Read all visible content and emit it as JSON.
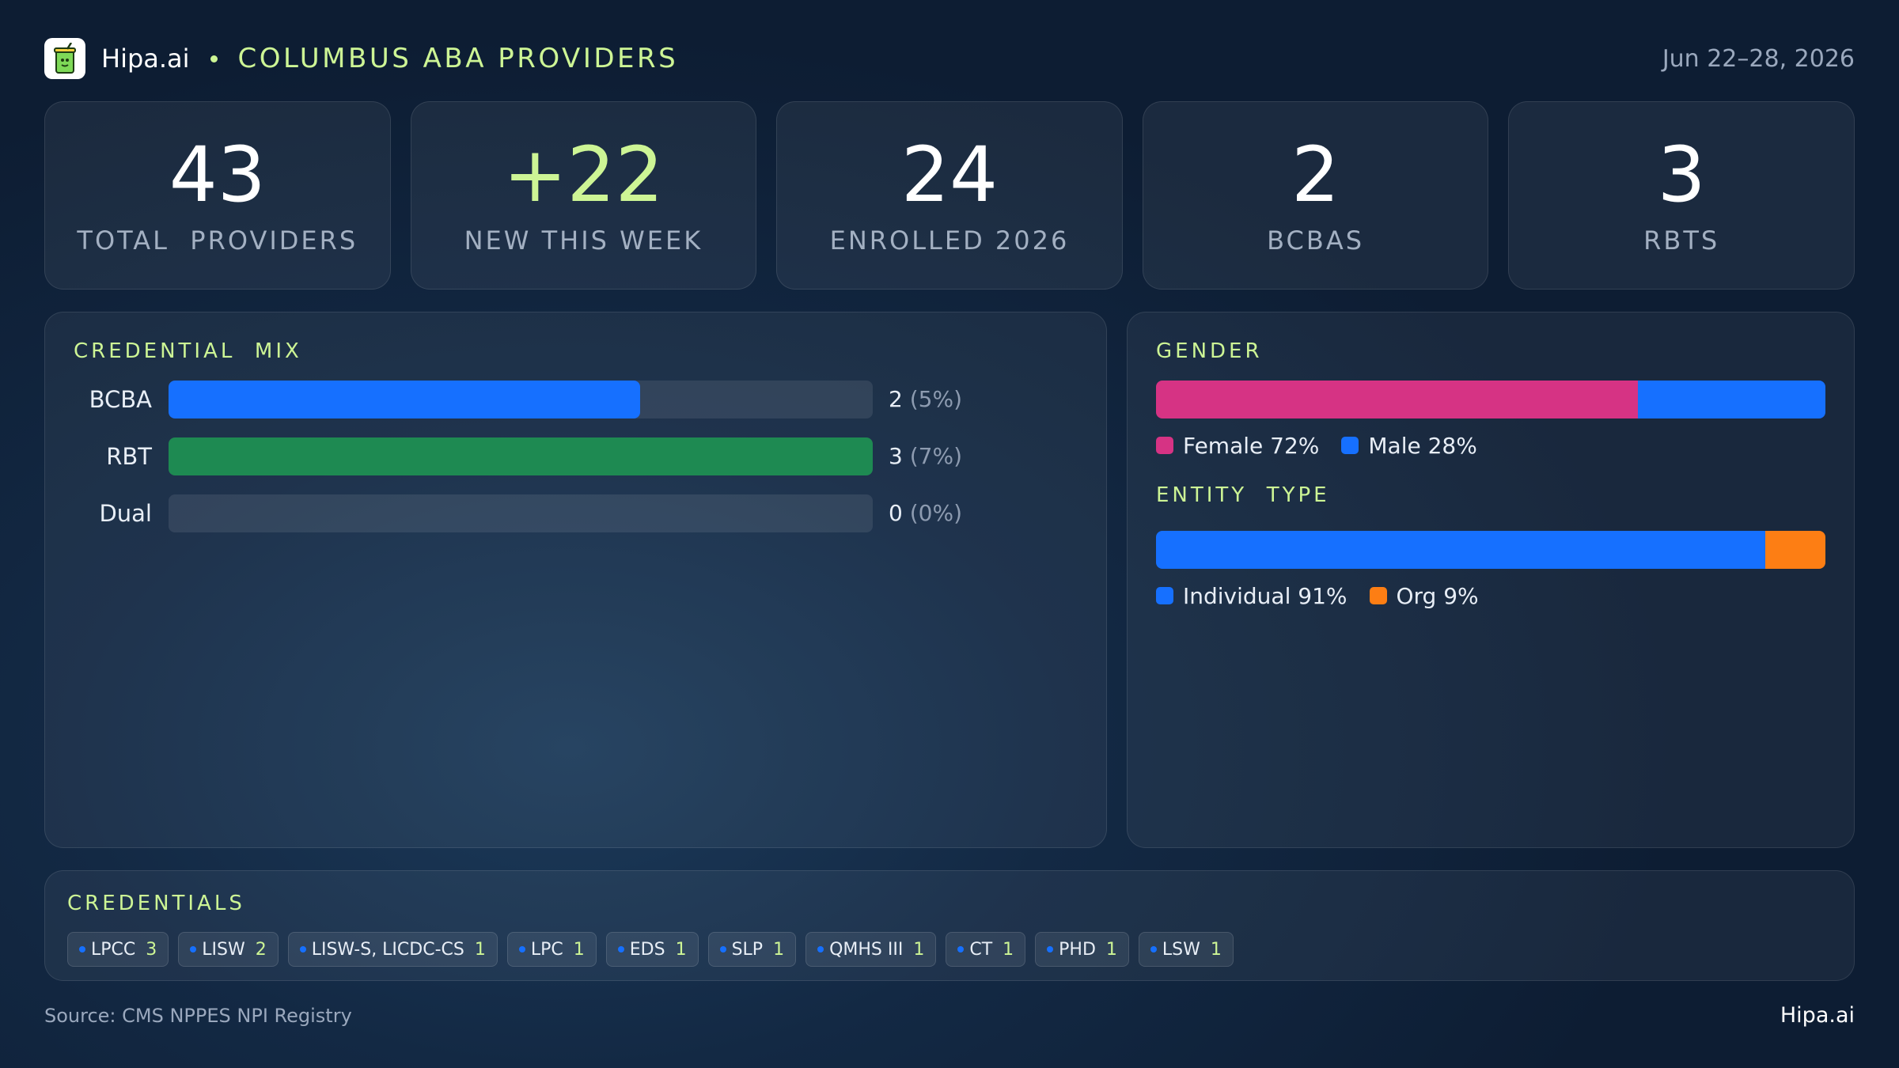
{
  "header": {
    "brand": "Hipa.ai",
    "title": "COLUMBUS ABA PROVIDERS",
    "date_range": "Jun 22–28, 2026",
    "logo_icon": "drink-cup-icon"
  },
  "kpis": [
    {
      "value": "43",
      "label": "TOTAL  PROVIDERS"
    },
    {
      "value": "+22",
      "label": "NEW THIS WEEK",
      "accent": "#cdf595"
    },
    {
      "value": "24",
      "label": "ENROLLED 2026"
    },
    {
      "value": "2",
      "label": "BCBAS"
    },
    {
      "value": "3",
      "label": "RBTS"
    }
  ],
  "credential_mix": {
    "title": "CREDENTIAL  MIX",
    "rows": [
      {
        "label": "BCBA",
        "count": "2",
        "pct": "(5%)",
        "fill": 0.67,
        "color": "#1670ff"
      },
      {
        "label": "RBT",
        "count": "3",
        "pct": "(7%)",
        "fill": 1.0,
        "color": "#1e8a52"
      },
      {
        "label": "Dual",
        "count": "0",
        "pct": "(0%)",
        "fill": 0.0,
        "color": "#1670ff"
      }
    ]
  },
  "gender": {
    "title": "GENDER",
    "segments": [
      {
        "label": "Female 72%",
        "share": 0.72,
        "color": "#d63384"
      },
      {
        "label": "Male 28%",
        "share": 0.28,
        "color": "#1670ff"
      }
    ]
  },
  "entity_type": {
    "title": "ENTITY  TYPE",
    "segments": [
      {
        "label": "Individual 91%",
        "share": 0.91,
        "color": "#1670ff"
      },
      {
        "label": "Org 9%",
        "share": 0.09,
        "color": "#fd7e14"
      }
    ]
  },
  "credentials": {
    "title": "CREDENTIALS",
    "chips": [
      {
        "name": "LPCC",
        "count": "3"
      },
      {
        "name": "LISW",
        "count": "2"
      },
      {
        "name": "LISW-S, LICDC-CS",
        "count": "1"
      },
      {
        "name": "LPC",
        "count": "1"
      },
      {
        "name": "EDS",
        "count": "1"
      },
      {
        "name": "SLP",
        "count": "1"
      },
      {
        "name": "QMHS III",
        "count": "1"
      },
      {
        "name": "CT",
        "count": "1"
      },
      {
        "name": "PHD",
        "count": "1"
      },
      {
        "name": "LSW",
        "count": "1"
      }
    ]
  },
  "footer": {
    "source": "Source: CMS NPPES NPI Registry",
    "brand": "Hipa.ai"
  }
}
